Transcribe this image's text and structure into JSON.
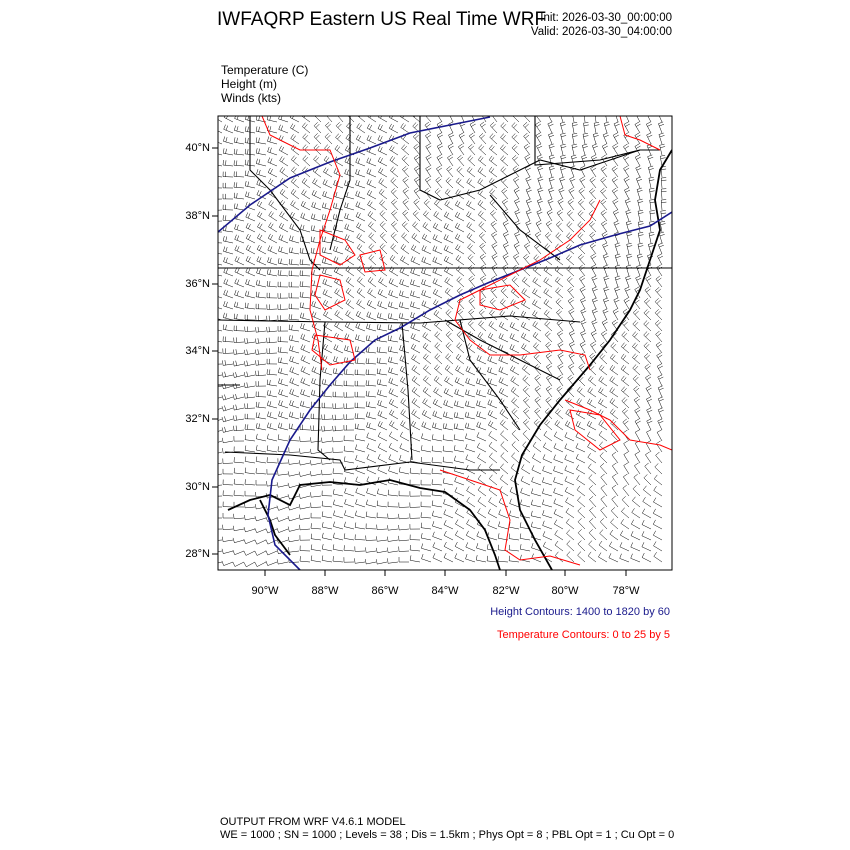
{
  "header": {
    "title": "IWFAQRP Eastern US Real Time WRF",
    "init": "Init: 2026-03-30_00:00:00",
    "valid": "Valid: 2026-03-30_04:00:00"
  },
  "fields": [
    {
      "label": "Temperature   (C)"
    },
    {
      "label": "Height   (m)"
    },
    {
      "label": "Winds   (kts)"
    }
  ],
  "map": {
    "lat_labels": [
      "40°N",
      "38°N",
      "36°N",
      "34°N",
      "32°N",
      "30°N",
      "28°N"
    ],
    "lon_labels": [
      "90°W",
      "88°W",
      "86°W",
      "84°W",
      "82°W",
      "80°W",
      "78°W"
    ],
    "colors": {
      "height": "#1a1a8c",
      "temperature": "#ff0000",
      "boundaries": "#000000",
      "barbs": "#000000"
    }
  },
  "legend": {
    "height_contours": "Height Contours: 1400 to 1820 by 60",
    "temperature_contours": "Temperature Contours: 0 to 25 by 5"
  },
  "footer": {
    "line1": "OUTPUT FROM WRF V4.6.1 MODEL",
    "line2": "WE = 1000 ; SN = 1000 ; Levels = 38 ; Dis = 1.5km ; Phys Opt = 8 ; PBL Opt = 1 ; Cu Opt = 0"
  }
}
